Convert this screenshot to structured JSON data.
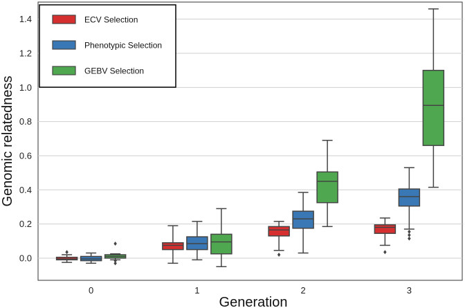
{
  "chart_data": {
    "type": "boxplot",
    "title": "",
    "xlabel": "Generation",
    "ylabel": "Genomic relatedness",
    "categories": [
      "0",
      "1",
      "2",
      "3"
    ],
    "ylim": [
      -0.13,
      1.5
    ],
    "yticks": [
      "0.0",
      "0.2",
      "0.4",
      "0.6",
      "0.8",
      "1.0",
      "1.2",
      "1.4"
    ],
    "grid": "horizontal",
    "legend_position": "top-left",
    "series": [
      {
        "name": "ECV Selection",
        "color": "#d62f2f",
        "boxes": [
          {
            "whislo": -0.025,
            "q1": -0.01,
            "med": -0.005,
            "q3": 0.005,
            "whishi": 0.02,
            "fliers": [
              0.035
            ]
          },
          {
            "whislo": -0.03,
            "q1": 0.05,
            "med": 0.075,
            "q3": 0.09,
            "whishi": 0.19,
            "fliers": []
          },
          {
            "whislo": 0.045,
            "q1": 0.13,
            "med": 0.165,
            "q3": 0.185,
            "whishi": 0.215,
            "fliers": [
              0.02
            ]
          },
          {
            "whislo": 0.075,
            "q1": 0.145,
            "med": 0.18,
            "q3": 0.195,
            "whishi": 0.235,
            "fliers": [
              0.035
            ]
          }
        ]
      },
      {
        "name": "Phenotypic Selection",
        "color": "#3a78b5",
        "boxes": [
          {
            "whislo": -0.03,
            "q1": -0.015,
            "med": -0.005,
            "q3": 0.01,
            "whishi": 0.03,
            "fliers": []
          },
          {
            "whislo": -0.01,
            "q1": 0.05,
            "med": 0.085,
            "q3": 0.125,
            "whishi": 0.215,
            "fliers": []
          },
          {
            "whislo": 0.03,
            "q1": 0.175,
            "med": 0.23,
            "q3": 0.275,
            "whishi": 0.385,
            "fliers": []
          },
          {
            "whislo": 0.17,
            "q1": 0.305,
            "med": 0.36,
            "q3": 0.405,
            "whishi": 0.53,
            "fliers": [
              0.155,
              0.135,
              0.115
            ]
          }
        ]
      },
      {
        "name": "GEBV Selection",
        "color": "#4fa84f",
        "boxes": [
          {
            "whislo": -0.01,
            "q1": 0.0,
            "med": 0.01,
            "q3": 0.02,
            "whishi": 0.025,
            "fliers": [
              0.085,
              -0.015,
              -0.03
            ]
          },
          {
            "whislo": -0.05,
            "q1": 0.025,
            "med": 0.095,
            "q3": 0.14,
            "whishi": 0.29,
            "fliers": []
          },
          {
            "whislo": 0.185,
            "q1": 0.325,
            "med": 0.45,
            "q3": 0.505,
            "whishi": 0.69,
            "fliers": []
          },
          {
            "whislo": 0.415,
            "q1": 0.66,
            "med": 0.895,
            "q3": 1.1,
            "whishi": 1.46,
            "fliers": []
          }
        ]
      }
    ]
  }
}
